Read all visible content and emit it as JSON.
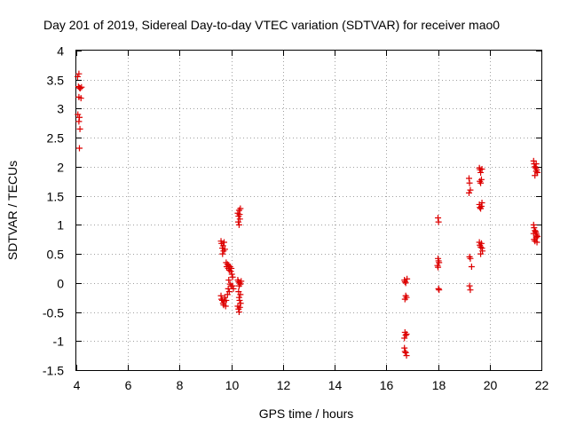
{
  "chart_data": {
    "type": "scatter",
    "title": "Day 201 of 2019, Sidereal Day-to-day VTEC variation (SDTVAR) for receiver mao0",
    "xlabel": "GPS time / hours",
    "ylabel": "SDTVAR / TECUs",
    "xlim": [
      4,
      22
    ],
    "ylim": [
      -1.5,
      4
    ],
    "xticks": [
      4,
      6,
      8,
      10,
      12,
      14,
      16,
      18,
      20,
      22
    ],
    "yticks": [
      -1.5,
      -1,
      -0.5,
      0,
      0.5,
      1,
      1.5,
      2,
      2.5,
      3,
      3.5,
      4
    ],
    "xtick_labels": [
      "4",
      "6",
      "8",
      "10",
      "12",
      "14",
      "16",
      "18",
      "20",
      "22"
    ],
    "ytick_labels": [
      "-1.5",
      "-1",
      "-0.5",
      "0",
      "0.5",
      "1",
      "1.5",
      "2",
      "2.5",
      "3",
      "3.5",
      "4"
    ],
    "grid": true,
    "marker": "+",
    "color": "#dd0000",
    "series": [
      {
        "name": "SDTVAR",
        "points": [
          [
            4.05,
            3.55
          ],
          [
            4.1,
            3.6
          ],
          [
            4.08,
            3.38
          ],
          [
            4.12,
            3.36
          ],
          [
            4.15,
            3.35
          ],
          [
            4.2,
            3.37
          ],
          [
            4.1,
            3.2
          ],
          [
            4.18,
            3.18
          ],
          [
            4.06,
            2.9
          ],
          [
            4.12,
            2.85
          ],
          [
            4.1,
            2.78
          ],
          [
            4.14,
            2.65
          ],
          [
            4.12,
            2.32
          ],
          [
            9.6,
            0.72
          ],
          [
            9.62,
            0.68
          ],
          [
            9.65,
            0.6
          ],
          [
            9.68,
            0.64
          ],
          [
            9.7,
            0.55
          ],
          [
            9.72,
            0.7
          ],
          [
            9.75,
            0.58
          ],
          [
            9.66,
            0.5
          ],
          [
            9.8,
            0.35
          ],
          [
            9.82,
            0.28
          ],
          [
            9.85,
            0.32
          ],
          [
            9.88,
            0.25
          ],
          [
            9.9,
            0.3
          ],
          [
            9.92,
            0.22
          ],
          [
            9.95,
            0.28
          ],
          [
            9.98,
            0.2
          ],
          [
            10.0,
            0.25
          ],
          [
            10.02,
            0.15
          ],
          [
            10.05,
            0.1
          ],
          [
            9.9,
            0.05
          ],
          [
            9.95,
            -0.02
          ],
          [
            10.0,
            -0.05
          ],
          [
            9.88,
            -0.1
          ],
          [
            9.92,
            -0.15
          ],
          [
            9.85,
            -0.2
          ],
          [
            10.05,
            -0.05
          ],
          [
            10.08,
            -0.1
          ],
          [
            9.6,
            -0.22
          ],
          [
            9.62,
            -0.28
          ],
          [
            9.65,
            -0.3
          ],
          [
            9.68,
            -0.35
          ],
          [
            9.7,
            -0.38
          ],
          [
            9.72,
            -0.32
          ],
          [
            9.75,
            -0.25
          ],
          [
            9.78,
            -0.4
          ],
          [
            9.8,
            -0.3
          ],
          [
            10.25,
            1.2
          ],
          [
            10.28,
            1.15
          ],
          [
            10.3,
            1.25
          ],
          [
            10.32,
            1.18
          ],
          [
            10.35,
            1.28
          ],
          [
            10.27,
            1.05
          ],
          [
            10.3,
            1.0
          ],
          [
            10.33,
            1.1
          ],
          [
            10.25,
            0.05
          ],
          [
            10.28,
            0.02
          ],
          [
            10.3,
            -0.05
          ],
          [
            10.32,
            0.0
          ],
          [
            10.35,
            -0.02
          ],
          [
            10.38,
            0.03
          ],
          [
            10.28,
            -0.15
          ],
          [
            10.3,
            -0.25
          ],
          [
            10.32,
            -0.3
          ],
          [
            10.35,
            -0.2
          ],
          [
            10.25,
            -0.4
          ],
          [
            10.28,
            -0.45
          ],
          [
            10.3,
            -0.5
          ],
          [
            10.33,
            -0.42
          ],
          [
            10.36,
            -0.35
          ],
          [
            16.7,
            0.05
          ],
          [
            16.72,
            0.02
          ],
          [
            16.75,
            0.0
          ],
          [
            16.8,
            0.07
          ],
          [
            16.75,
            -0.22
          ],
          [
            16.72,
            -0.28
          ],
          [
            16.78,
            -0.25
          ],
          [
            16.72,
            -0.85
          ],
          [
            16.75,
            -0.9
          ],
          [
            16.7,
            -0.95
          ],
          [
            16.78,
            -0.88
          ],
          [
            16.7,
            -1.12
          ],
          [
            16.72,
            -1.18
          ],
          [
            16.75,
            -1.2
          ],
          [
            16.78,
            -1.25
          ],
          [
            18.0,
            1.12
          ],
          [
            18.02,
            1.05
          ],
          [
            18.0,
            0.42
          ],
          [
            18.02,
            0.38
          ],
          [
            18.04,
            0.35
          ],
          [
            17.98,
            0.3
          ],
          [
            18.0,
            0.27
          ],
          [
            18.02,
            -0.1
          ],
          [
            18.04,
            -0.12
          ],
          [
            19.2,
            1.8
          ],
          [
            19.22,
            1.72
          ],
          [
            19.25,
            1.6
          ],
          [
            19.2,
            1.55
          ],
          [
            19.22,
            0.45
          ],
          [
            19.25,
            0.42
          ],
          [
            19.3,
            0.28
          ],
          [
            19.22,
            -0.05
          ],
          [
            19.25,
            -0.12
          ],
          [
            19.6,
            1.98
          ],
          [
            19.62,
            1.95
          ],
          [
            19.65,
            1.9
          ],
          [
            19.7,
            1.96
          ],
          [
            19.62,
            1.75
          ],
          [
            19.65,
            1.72
          ],
          [
            19.68,
            1.78
          ],
          [
            19.6,
            1.35
          ],
          [
            19.62,
            1.3
          ],
          [
            19.65,
            1.28
          ],
          [
            19.68,
            1.32
          ],
          [
            19.7,
            1.38
          ],
          [
            19.6,
            0.7
          ],
          [
            19.62,
            0.65
          ],
          [
            19.65,
            0.62
          ],
          [
            19.68,
            0.68
          ],
          [
            19.7,
            0.6
          ],
          [
            19.72,
            0.55
          ],
          [
            19.65,
            0.5
          ],
          [
            21.7,
            2.1
          ],
          [
            21.72,
            2.05
          ],
          [
            21.75,
            2.0
          ],
          [
            21.78,
            1.98
          ],
          [
            21.8,
            1.92
          ],
          [
            21.82,
            1.95
          ],
          [
            21.85,
            1.9
          ],
          [
            21.75,
            1.85
          ],
          [
            21.8,
            2.05
          ],
          [
            21.7,
            1.0
          ],
          [
            21.72,
            0.95
          ],
          [
            21.75,
            0.9
          ],
          [
            21.78,
            0.88
          ],
          [
            21.8,
            0.85
          ],
          [
            21.82,
            0.82
          ],
          [
            21.85,
            0.8
          ],
          [
            21.72,
            0.75
          ],
          [
            21.75,
            0.72
          ],
          [
            21.8,
            0.78
          ],
          [
            21.83,
            0.7
          ],
          [
            21.7,
            0.85
          ]
        ]
      }
    ]
  }
}
